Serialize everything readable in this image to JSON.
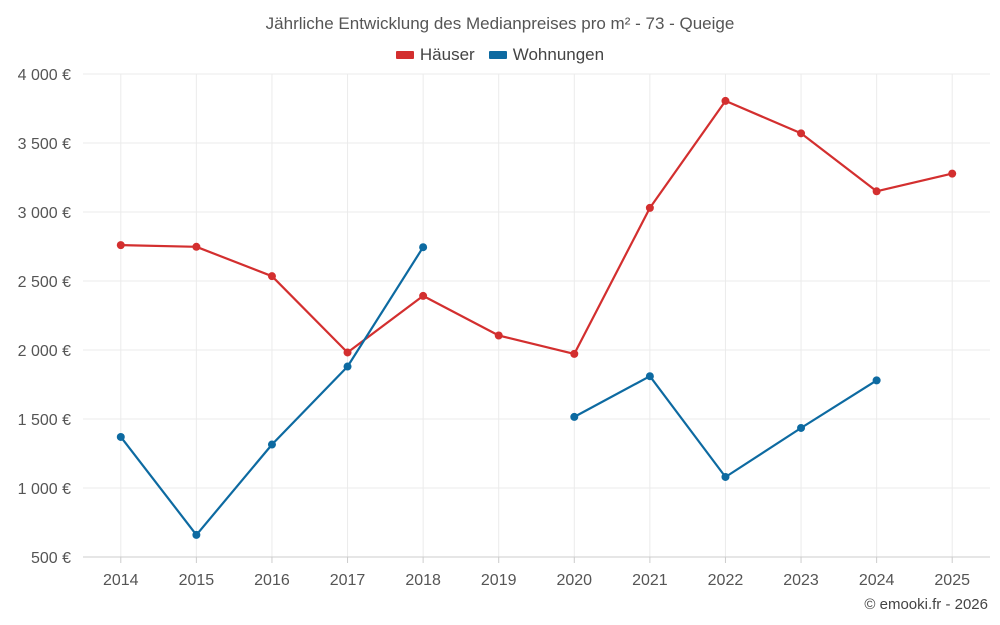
{
  "chart_data": {
    "type": "line",
    "title": "Jährliche Entwicklung des Medianpreises pro m² - 73 - Queige",
    "categories": [
      "2014",
      "2015",
      "2016",
      "2017",
      "2018",
      "2019",
      "2020",
      "2021",
      "2022",
      "2023",
      "2024",
      "2025"
    ],
    "series": [
      {
        "name": "Häuser",
        "color": "#d32f2f",
        "values": [
          2760,
          2748,
          2535,
          1982,
          2392,
          2105,
          1972,
          3030,
          3805,
          3570,
          3150,
          3278
        ]
      },
      {
        "name": "Wohnungen",
        "color": "#0d6aa1",
        "values": [
          1370,
          660,
          1315,
          1880,
          2745,
          null,
          1515,
          1810,
          1080,
          1435,
          1780,
          null
        ]
      }
    ],
    "ylim": [
      500,
      4000
    ],
    "yticks": [
      500,
      1000,
      1500,
      2000,
      2500,
      3000,
      3500,
      4000
    ],
    "ytick_labels": [
      "500 €",
      "1 000 €",
      "1 500 €",
      "2 000 €",
      "2 500 €",
      "3 000 €",
      "3 500 €",
      "4 000 €"
    ],
    "grid": true,
    "legend_position": "top-center"
  },
  "credit": "© emooki.fr - 2026"
}
